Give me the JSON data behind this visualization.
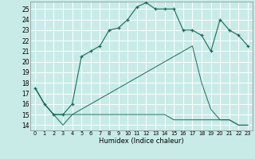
{
  "title": "",
  "xlabel": "Humidex (Indice chaleur)",
  "bg_color": "#c8ebe8",
  "grid_color": "#ffffff",
  "line_color": "#1a6b5a",
  "xlim": [
    -0.5,
    23.5
  ],
  "ylim": [
    13.5,
    25.7
  ],
  "xticks": [
    0,
    1,
    2,
    3,
    4,
    5,
    6,
    7,
    8,
    9,
    10,
    11,
    12,
    13,
    14,
    15,
    16,
    17,
    18,
    19,
    20,
    21,
    22,
    23
  ],
  "yticks": [
    14,
    15,
    16,
    17,
    18,
    19,
    20,
    21,
    22,
    23,
    24,
    25
  ],
  "line1_x": [
    0,
    1,
    2,
    3,
    4,
    5,
    6,
    7,
    8,
    9,
    10,
    11,
    12,
    13,
    14,
    15,
    16,
    17,
    18,
    19,
    20,
    21,
    22,
    23
  ],
  "line1_y": [
    17.5,
    16.0,
    15.0,
    15.0,
    16.0,
    20.5,
    21.0,
    21.5,
    23.0,
    23.2,
    24.0,
    25.2,
    25.6,
    25.0,
    25.0,
    25.0,
    23.0,
    23.0,
    22.5,
    21.0,
    24.0,
    23.0,
    22.5,
    21.5
  ],
  "line2_x": [
    0,
    1,
    2,
    3,
    4,
    5,
    6,
    7,
    8,
    9,
    10,
    11,
    12,
    13,
    14,
    15,
    16,
    17,
    18,
    19,
    20,
    21,
    22,
    23
  ],
  "line2_y": [
    17.5,
    16.0,
    15.0,
    15.0,
    15.0,
    15.0,
    15.0,
    15.0,
    15.0,
    15.0,
    15.0,
    15.0,
    15.0,
    15.0,
    15.0,
    14.5,
    14.5,
    14.5,
    14.5,
    14.5,
    14.5,
    14.5,
    14.0,
    14.0
  ],
  "line3_x": [
    0,
    1,
    2,
    3,
    4,
    5,
    6,
    7,
    8,
    9,
    10,
    11,
    12,
    13,
    14,
    15,
    16,
    17,
    18,
    19,
    20,
    21,
    22,
    23
  ],
  "line3_y": [
    17.5,
    16.0,
    15.0,
    14.0,
    15.0,
    15.5,
    16.0,
    16.5,
    17.0,
    17.5,
    18.0,
    18.5,
    19.0,
    19.5,
    20.0,
    20.5,
    21.0,
    21.5,
    18.0,
    15.5,
    14.5,
    14.5,
    14.0,
    14.0
  ]
}
